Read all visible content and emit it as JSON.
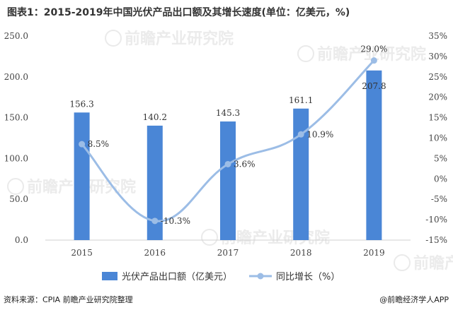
{
  "title": "图表1：2015-2019年中国光伏产品出口额及其增长速度(单位：亿美元，%)",
  "chart_data": {
    "type": "bar",
    "categories": [
      "2015",
      "2016",
      "2017",
      "2018",
      "2019"
    ],
    "series": [
      {
        "name": "光伏产品出口额（亿美元）",
        "type": "bar",
        "axis": "left",
        "color": "#4a86d6",
        "values": [
          156.3,
          140.2,
          145.3,
          161.1,
          207.8
        ],
        "labels": [
          "156.3",
          "140.2",
          "145.3",
          "161.1",
          "207.8"
        ]
      },
      {
        "name": "同比增长（%）",
        "type": "line",
        "axis": "right",
        "color": "#9cbde6",
        "values": [
          8.5,
          -10.3,
          3.6,
          10.9,
          29.0
        ],
        "labels": [
          "8.5%",
          "-10.3%",
          "3.6%",
          "10.9%",
          "29.0%"
        ]
      }
    ],
    "y_left": {
      "min": 0,
      "max": 250,
      "ticks": [
        "0.0",
        "50.0",
        "100.0",
        "150.0",
        "200.0",
        "250.0"
      ]
    },
    "y_right": {
      "min": -15,
      "max": 35,
      "ticks": [
        "-15%",
        "-10%",
        "-5%",
        "0%",
        "5%",
        "10%",
        "15%",
        "20%",
        "25%",
        "30%",
        "35%"
      ]
    },
    "grid": false,
    "legend_position": "bottom"
  },
  "watermark": "前瞻产业研究院",
  "footer": {
    "source": "资料来源：CPIA 前瞻产业研究院整理",
    "credit": "@前瞻经济学人APP"
  }
}
